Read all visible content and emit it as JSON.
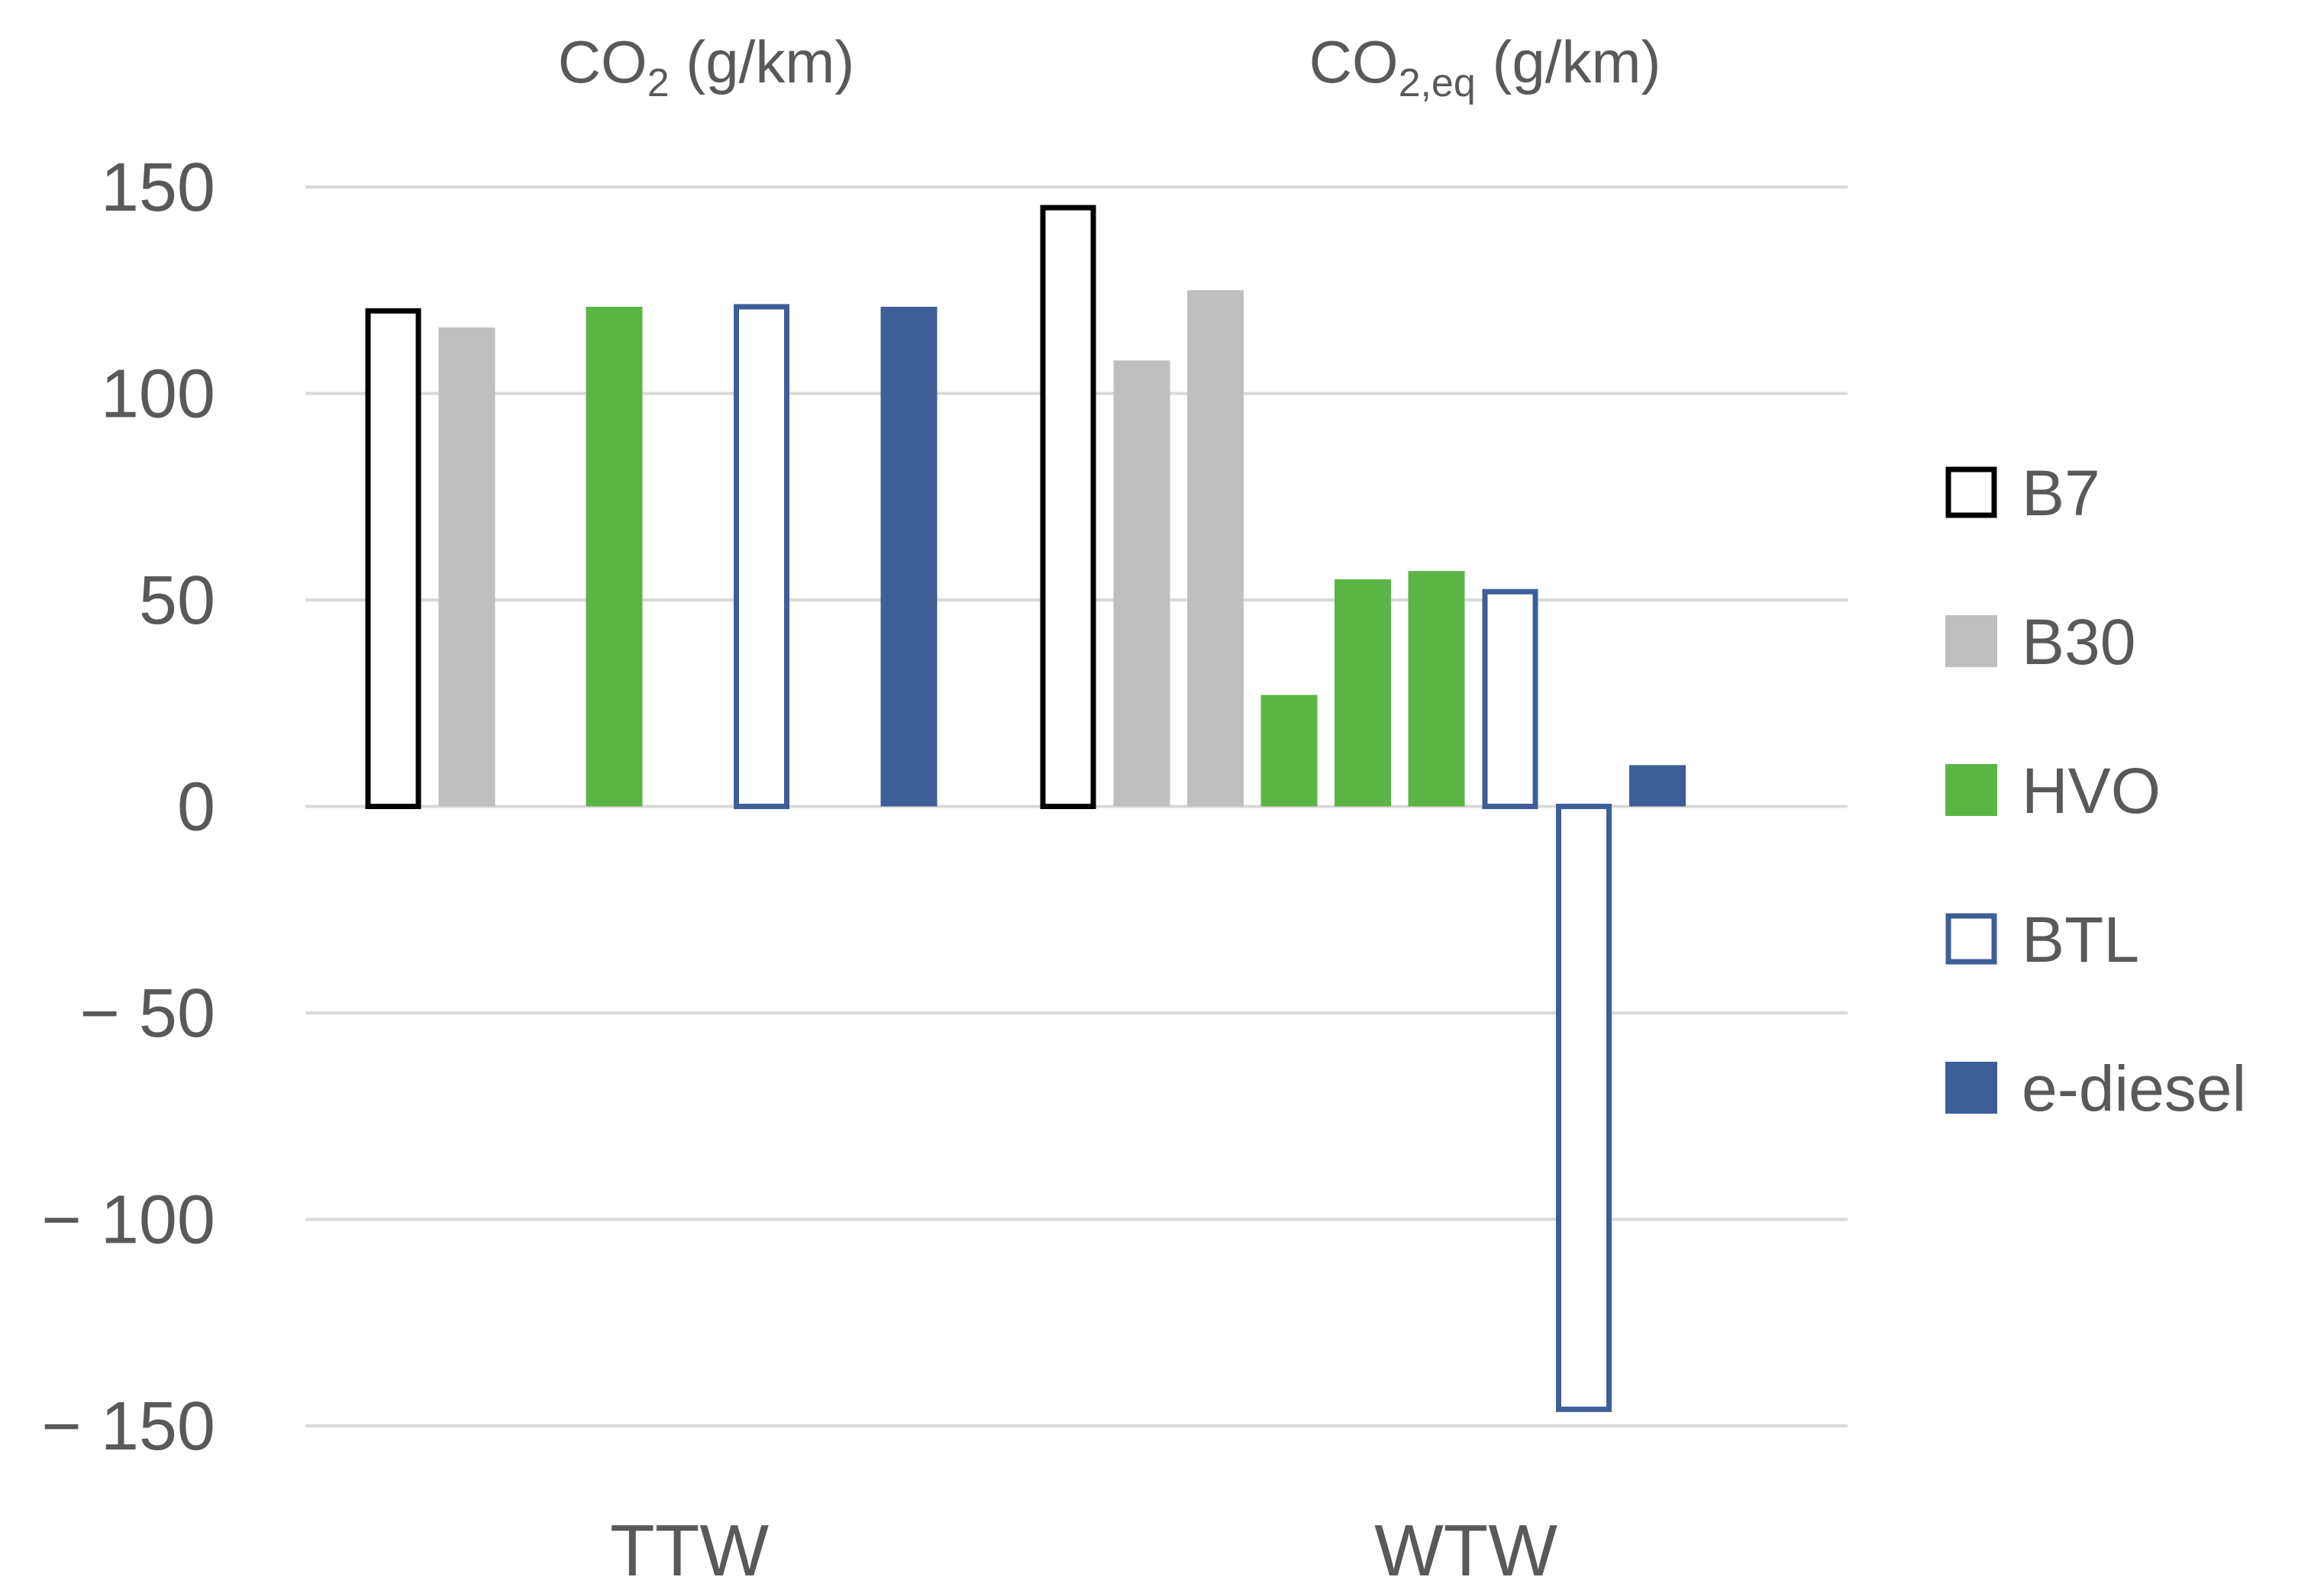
{
  "chart_data": {
    "type": "bar",
    "title": "",
    "xlabel": "",
    "ylabel": "",
    "ylim": [
      -150,
      150
    ],
    "yticks": [
      150,
      100,
      50,
      0,
      -50,
      -100,
      -150
    ],
    "ytick_labels": [
      "150",
      "100",
      "50",
      "0",
      "− 50",
      "− 100",
      "− 150"
    ],
    "grid": true,
    "legend_position": "right",
    "panel_titles": [
      {
        "main": "CO",
        "sub": "2",
        "unit": " (g/km)"
      },
      {
        "main": "CO",
        "sub": "2,eq",
        "unit": " (g/km)"
      }
    ],
    "categories": [
      "TTW",
      "WTW"
    ],
    "series": [
      {
        "name": "B7",
        "style": "outline",
        "color": "#000000"
      },
      {
        "name": "B30",
        "style": "fill",
        "color": "#bfbfbf"
      },
      {
        "name": "HVO",
        "style": "fill",
        "color": "#5bb545"
      },
      {
        "name": "BTL",
        "style": "outline",
        "color": "#3e5e98"
      },
      {
        "name": "e-diesel",
        "style": "fill",
        "color": "#3e5e98"
      }
    ],
    "bars": [
      {
        "category": "TTW",
        "series": "B7",
        "value": 120
      },
      {
        "category": "TTW",
        "series": "B30",
        "value": 116
      },
      {
        "category": "TTW",
        "series": "HVO",
        "value": 121
      },
      {
        "category": "TTW",
        "series": "BTL",
        "value": 121
      },
      {
        "category": "TTW",
        "series": "e-diesel",
        "value": 121
      },
      {
        "category": "WTW",
        "series": "B7",
        "value": 145
      },
      {
        "category": "WTW",
        "series": "B30",
        "value": 108
      },
      {
        "category": "WTW",
        "series": "B30",
        "value": 125
      },
      {
        "category": "WTW",
        "series": "HVO",
        "value": 27
      },
      {
        "category": "WTW",
        "series": "HVO",
        "value": 55
      },
      {
        "category": "WTW",
        "series": "HVO",
        "value": 57
      },
      {
        "category": "WTW",
        "series": "BTL",
        "value": 52
      },
      {
        "category": "WTW",
        "series": "BTL",
        "value": -146
      },
      {
        "category": "WTW",
        "series": "e-diesel",
        "value": 10
      }
    ]
  }
}
